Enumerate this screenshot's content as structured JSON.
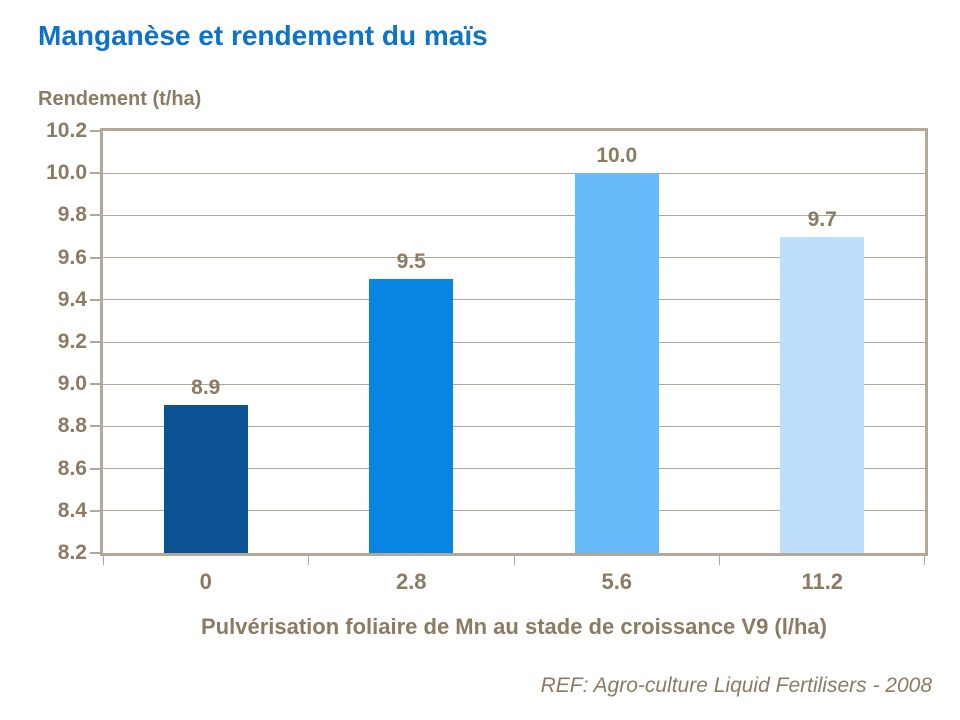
{
  "page": {
    "title": "Manganèse et rendement du maïs",
    "footer_ref": "REF: Agro-culture Liquid Fertilisers - 2008"
  },
  "chart_data": {
    "type": "bar",
    "title": "Manganèse et rendement du maïs",
    "ylabel": "Rendement (t/ha)",
    "xlabel": "Pulvérisation foliaire de Mn au stade de croissance V9 (l/ha)",
    "categories": [
      "0",
      "2.8",
      "5.6",
      "11.2"
    ],
    "values": [
      8.9,
      9.5,
      10.0,
      9.7
    ],
    "value_labels": [
      "8.9",
      "9.5",
      "10.0",
      "9.7"
    ],
    "bar_colors": [
      "#0b5394",
      "#0884e2",
      "#67baf9",
      "#bddffb"
    ],
    "ylim": [
      8.2,
      10.2
    ],
    "ytick_step": 0.2,
    "grid": true,
    "legend": false,
    "annotation": "REF: Agro-culture Liquid Fertilisers - 2008"
  },
  "colors": {
    "title_blue": "#0e72c6",
    "axis_text_brown": "#8b7b64",
    "axis_line": "#b3a89a",
    "gridline": "#b0a89b"
  }
}
